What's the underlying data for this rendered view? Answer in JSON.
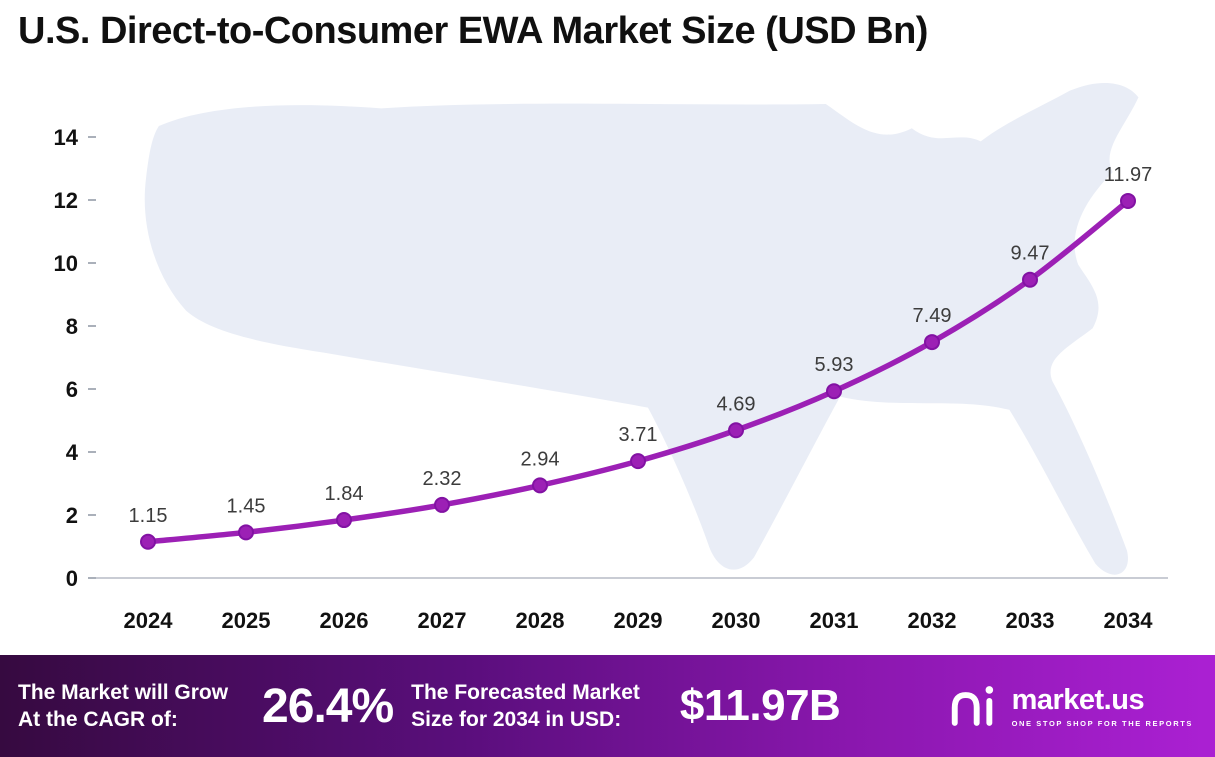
{
  "chart_data": {
    "type": "line",
    "title": "U.S. Direct-to-Consumer EWA Market Size (USD Bn)",
    "categories": [
      "2024",
      "2025",
      "2026",
      "2027",
      "2028",
      "2029",
      "2030",
      "2031",
      "2032",
      "2033",
      "2034"
    ],
    "values": [
      1.15,
      1.45,
      1.84,
      2.32,
      2.94,
      3.71,
      4.69,
      5.93,
      7.49,
      9.47,
      11.97
    ],
    "xlabel": "",
    "ylabel": "",
    "ylim": [
      0,
      14
    ],
    "yticks": [
      0,
      2,
      4,
      6,
      8,
      10,
      12,
      14
    ],
    "grid": false,
    "legend": "none",
    "line_color": "#9c20b5",
    "marker_color": "#9c20b5",
    "marker_stroke": "#8212a3",
    "value_label_color": "#3c3c3c",
    "axis_color": "#c9ccd4",
    "tick_label_color": "#111111",
    "map_watermark_color": "#e9edf6"
  },
  "footer": {
    "cagr_label_line1": "The Market will Grow",
    "cagr_label_line2": "At the CAGR of:",
    "cagr_value": "26.4%",
    "forecast_label_line1": "The Forecasted Market",
    "forecast_label_line2": "Size for 2034 in USD:",
    "forecast_value": "$11.97B",
    "brand_name": "market.us",
    "brand_tagline": "ONE STOP SHOP FOR THE REPORTS"
  }
}
